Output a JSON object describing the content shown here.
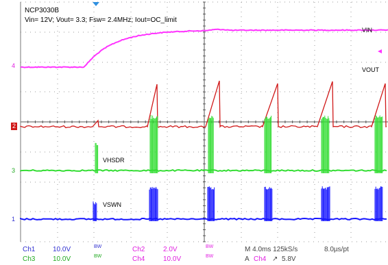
{
  "header": {
    "device": "NCP3030B",
    "conditions": "Vin= 12V; Vout= 3.3; Fsw= 2.4MHz; Iout=OC_limit"
  },
  "trace_labels": {
    "vin": "VIN",
    "vout": "VOUT",
    "vhsdr": "VHSDR",
    "vswn": "VSWN"
  },
  "channel_markers": {
    "ch4": "4",
    "ch2": "2",
    "ch3": "3",
    "ch1": "1"
  },
  "footer": {
    "row1": {
      "ch1_name": "Ch1",
      "ch1_scale": "10.0V",
      "ch1_bw": "BW",
      "ch2_name": "Ch2",
      "ch2_scale": "2.0V",
      "ch2_bw": "BW",
      "timebase": "M 4.0ms 125kS/s",
      "resolution": "8.0µs/pt"
    },
    "row2": {
      "ch3_name": "Ch3",
      "ch3_scale": "10.0V",
      "ch3_bw": "BW",
      "ch4_name": "Ch4",
      "ch4_scale": "10.0V",
      "ch4_bw": "BW",
      "trigger_prefix": "A",
      "trigger_source": "Ch4",
      "trigger_slope": "↗",
      "trigger_level": "5.8V"
    }
  },
  "colors": {
    "ch1": "#1515ff",
    "ch2": "#d01818",
    "ch3": "#33dd33",
    "ch4": "#ff33ff",
    "grid": "#9a9a9a",
    "footer_blue": "#3030d0",
    "footer_magenta": "#e020e0",
    "footer_green": "#22aa22"
  }
}
